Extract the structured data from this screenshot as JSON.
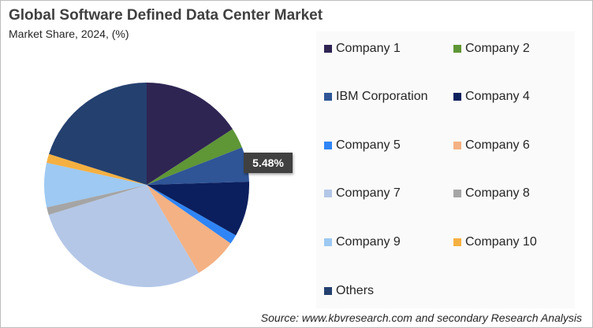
{
  "chart_data": {
    "type": "pie",
    "title": "Global Software Defined Data Center Market",
    "subtitle": "Market Share, 2024, (%)",
    "legend_position": "right",
    "start_angle": "12 o'clock, clockwise",
    "slices": [
      {
        "name": "Company 1",
        "value": 15.8,
        "color": "#2f2553"
      },
      {
        "name": "Company 2",
        "value": 3.2,
        "color": "#5f9636"
      },
      {
        "name": "IBM Corporation",
        "value": 5.48,
        "color": "#2f5597",
        "label": "5.48%"
      },
      {
        "name": "Company 4",
        "value": 8.7,
        "color": "#0b1f5e"
      },
      {
        "name": "Company 5",
        "value": 1.5,
        "color": "#2f85f5"
      },
      {
        "name": "Company 6",
        "value": 6.8,
        "color": "#f4b183"
      },
      {
        "name": "Company 7",
        "value": 28.7,
        "color": "#b4c7e7"
      },
      {
        "name": "Company 8",
        "value": 1.2,
        "color": "#a5a5a5"
      },
      {
        "name": "Company 9",
        "value": 7.0,
        "color": "#9dc9f2"
      },
      {
        "name": "Company 10",
        "value": 1.4,
        "color": "#f5b041"
      },
      {
        "name": "Others",
        "value": 20.1,
        "color": "#24406f"
      }
    ]
  },
  "source": "Source: www.kbvresearch.com and secondary Research Analysis"
}
